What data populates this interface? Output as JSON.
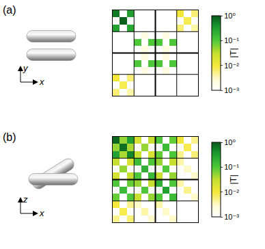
{
  "chart_data": [
    {
      "type": "heatmap",
      "panel_label": "(a)",
      "axis_labels": {
        "horizontal": "x",
        "vertical": "y"
      },
      "size": 12,
      "tick_labels": false,
      "log": true,
      "cells": [
        [
          0,
          0,
          0.6
        ],
        [
          0,
          2,
          0.3
        ],
        [
          1,
          1,
          0.9
        ],
        [
          2,
          0,
          0.3
        ],
        [
          2,
          2,
          0.25
        ],
        [
          0,
          9,
          0.01
        ],
        [
          0,
          11,
          0.006
        ],
        [
          1,
          10,
          0.008
        ],
        [
          2,
          9,
          0.006
        ],
        [
          2,
          11,
          0.004
        ],
        [
          4,
          3,
          0.1
        ],
        [
          4,
          5,
          0.1
        ],
        [
          4,
          6,
          0.1
        ],
        [
          4,
          8,
          0.1
        ],
        [
          7,
          3,
          0.1
        ],
        [
          7,
          5,
          0.1
        ],
        [
          7,
          6,
          0.1
        ],
        [
          7,
          8,
          0.1
        ],
        [
          3,
          4,
          0.002
        ],
        [
          5,
          4,
          0.002
        ],
        [
          3,
          7,
          0.002
        ],
        [
          5,
          7,
          0.002
        ],
        [
          6,
          4,
          0.002
        ],
        [
          8,
          4,
          0.002
        ],
        [
          6,
          7,
          0.002
        ],
        [
          8,
          7,
          0.002
        ],
        [
          9,
          0,
          0.01
        ],
        [
          9,
          2,
          0.006
        ],
        [
          10,
          1,
          0.008
        ],
        [
          11,
          0,
          0.006
        ],
        [
          11,
          2,
          0.004
        ]
      ],
      "colorbar": {
        "title": "|T|",
        "range": [
          0.001,
          1
        ],
        "ticks": [
          {
            "value": 1,
            "label": "10⁰"
          },
          {
            "value": 0.1,
            "label": "10⁻¹"
          },
          {
            "value": 0.01,
            "label": "10⁻²"
          },
          {
            "value": 0.001,
            "label": "10⁻³"
          }
        ]
      }
    },
    {
      "type": "heatmap",
      "panel_label": "(b)",
      "axis_labels": {
        "horizontal": "x",
        "vertical": "z"
      },
      "size": 12,
      "tick_labels": false,
      "log": true,
      "cells": [
        [
          0,
          0,
          0.8
        ],
        [
          0,
          2,
          0.3
        ],
        [
          1,
          1,
          0.7
        ],
        [
          2,
          0,
          0.3
        ],
        [
          2,
          2,
          0.5
        ],
        [
          0,
          1,
          0.05
        ],
        [
          1,
          0,
          0.05
        ],
        [
          1,
          2,
          0.04
        ],
        [
          2,
          1,
          0.04
        ],
        [
          0,
          3,
          0.02
        ],
        [
          0,
          5,
          0.03
        ],
        [
          1,
          4,
          0.05
        ],
        [
          2,
          3,
          0.03
        ],
        [
          2,
          5,
          0.02
        ],
        [
          0,
          6,
          0.1
        ],
        [
          0,
          8,
          0.08
        ],
        [
          1,
          7,
          0.15
        ],
        [
          2,
          6,
          0.08
        ],
        [
          2,
          8,
          0.1
        ],
        [
          0,
          9,
          0.01
        ],
        [
          0,
          11,
          0.005
        ],
        [
          1,
          10,
          0.008
        ],
        [
          2,
          9,
          0.005
        ],
        [
          2,
          11,
          0.006
        ],
        [
          3,
          0,
          0.03
        ],
        [
          3,
          2,
          0.02
        ],
        [
          4,
          1,
          0.05
        ],
        [
          5,
          0,
          0.02
        ],
        [
          5,
          2,
          0.03
        ],
        [
          3,
          3,
          0.15
        ],
        [
          3,
          5,
          0.1
        ],
        [
          4,
          4,
          0.2
        ],
        [
          5,
          3,
          0.1
        ],
        [
          5,
          5,
          0.15
        ],
        [
          3,
          6,
          0.05
        ],
        [
          3,
          8,
          0.03
        ],
        [
          4,
          7,
          0.1
        ],
        [
          5,
          6,
          0.03
        ],
        [
          5,
          8,
          0.05
        ],
        [
          3,
          9,
          0.004
        ],
        [
          4,
          10,
          0.003
        ],
        [
          5,
          11,
          0.003
        ],
        [
          6,
          0,
          0.1
        ],
        [
          6,
          2,
          0.08
        ],
        [
          7,
          1,
          0.15
        ],
        [
          8,
          0,
          0.08
        ],
        [
          8,
          2,
          0.1
        ],
        [
          6,
          3,
          0.05
        ],
        [
          6,
          5,
          0.03
        ],
        [
          7,
          4,
          0.1
        ],
        [
          8,
          3,
          0.03
        ],
        [
          8,
          5,
          0.05
        ],
        [
          6,
          6,
          0.2
        ],
        [
          6,
          8,
          0.1
        ],
        [
          7,
          7,
          0.3
        ],
        [
          8,
          6,
          0.1
        ],
        [
          8,
          8,
          0.15
        ],
        [
          6,
          9,
          0.004
        ],
        [
          7,
          10,
          0.005
        ],
        [
          8,
          11,
          0.003
        ],
        [
          9,
          0,
          0.01
        ],
        [
          9,
          2,
          0.005
        ],
        [
          10,
          1,
          0.008
        ],
        [
          11,
          0,
          0.005
        ],
        [
          11,
          2,
          0.006
        ],
        [
          9,
          3,
          0.003
        ],
        [
          10,
          4,
          0.004
        ],
        [
          11,
          5,
          0.003
        ],
        [
          9,
          6,
          0.004
        ],
        [
          10,
          7,
          0.003
        ],
        [
          11,
          8,
          0.003
        ]
      ],
      "colorbar": {
        "title": "|T|",
        "range": [
          0.001,
          1
        ],
        "ticks": [
          {
            "value": 1,
            "label": "10⁰"
          },
          {
            "value": 0.1,
            "label": "10⁻¹"
          },
          {
            "value": 0.01,
            "label": "10⁻²"
          },
          {
            "value": 0.001,
            "label": "10⁻³"
          }
        ]
      }
    }
  ]
}
